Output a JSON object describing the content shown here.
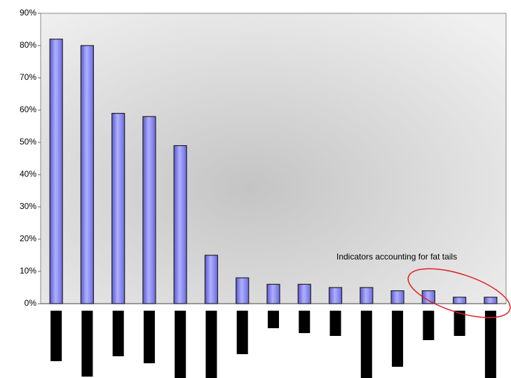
{
  "chart_data": {
    "type": "bar",
    "categories": [
      null,
      null,
      null,
      null,
      null,
      null,
      null,
      null,
      null,
      null,
      null,
      null,
      null,
      null,
      null
    ],
    "values": [
      82,
      80,
      59,
      58,
      49,
      15,
      8,
      6,
      6,
      5,
      5,
      4,
      4,
      2,
      2
    ],
    "color": "#8c8cf2",
    "ylim": [
      0,
      90
    ],
    "yticks": [
      {
        "value": 0,
        "label": "0%"
      },
      {
        "value": 10,
        "label": "10%"
      },
      {
        "value": 20,
        "label": "20%"
      },
      {
        "value": 30,
        "label": "30%"
      },
      {
        "value": 40,
        "label": "40%"
      },
      {
        "value": 50,
        "label": "50%"
      },
      {
        "value": 60,
        "label": "60%"
      },
      {
        "value": 70,
        "label": "70%"
      },
      {
        "value": 80,
        "label": "80%"
      },
      {
        "value": 90,
        "label": "90%"
      }
    ],
    "annotation": "Indicators accounting for fat tails"
  }
}
